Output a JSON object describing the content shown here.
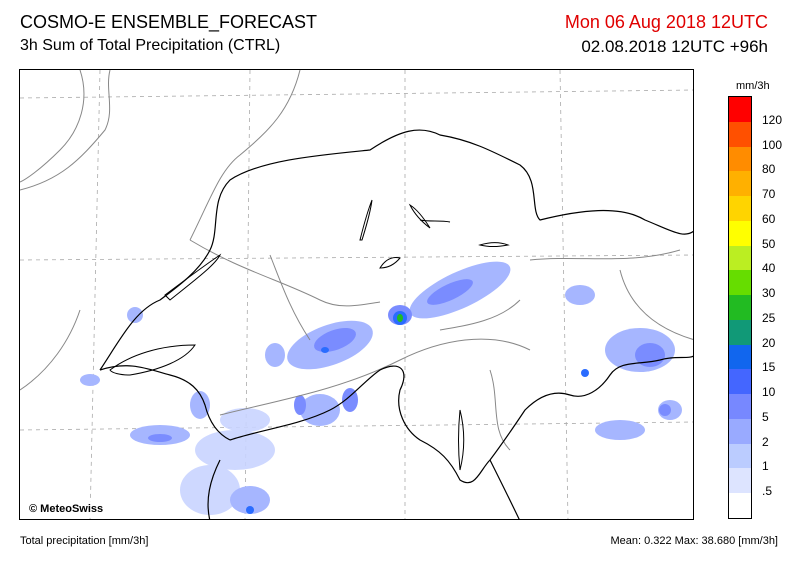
{
  "header": {
    "title": "COSMO-E ENSEMBLE_FORECAST",
    "subtitle": "3h Sum of Total Precipitation (CTRL)",
    "valid_time": "Mon 06 Aug 2018 12UTC",
    "valid_color": "#e00000",
    "run_time": "02.08.2018 12UTC +96h"
  },
  "map": {
    "copyright": "© MeteoSwiss"
  },
  "legend": {
    "unit": "mm/3h",
    "labels": [
      "120",
      "100",
      "80",
      "70",
      "60",
      "50",
      "40",
      "30",
      "25",
      "20",
      "15",
      "10",
      "5",
      "2",
      "1",
      ".5"
    ],
    "colors": [
      "#ff0000",
      "#ff5000",
      "#ff8c00",
      "#ffb000",
      "#ffd400",
      "#ffff00",
      "#bbee22",
      "#66dd00",
      "#22bb22",
      "#119977",
      "#1166ee",
      "#4466ff",
      "#7788ff",
      "#99aaff",
      "#bbccff",
      "#dde4ff",
      "#ffffff"
    ]
  },
  "footer": {
    "left": "Total precipitation [mm/3h]",
    "right": "Mean:   0.322 Max:  38.680 [mm/3h]"
  }
}
